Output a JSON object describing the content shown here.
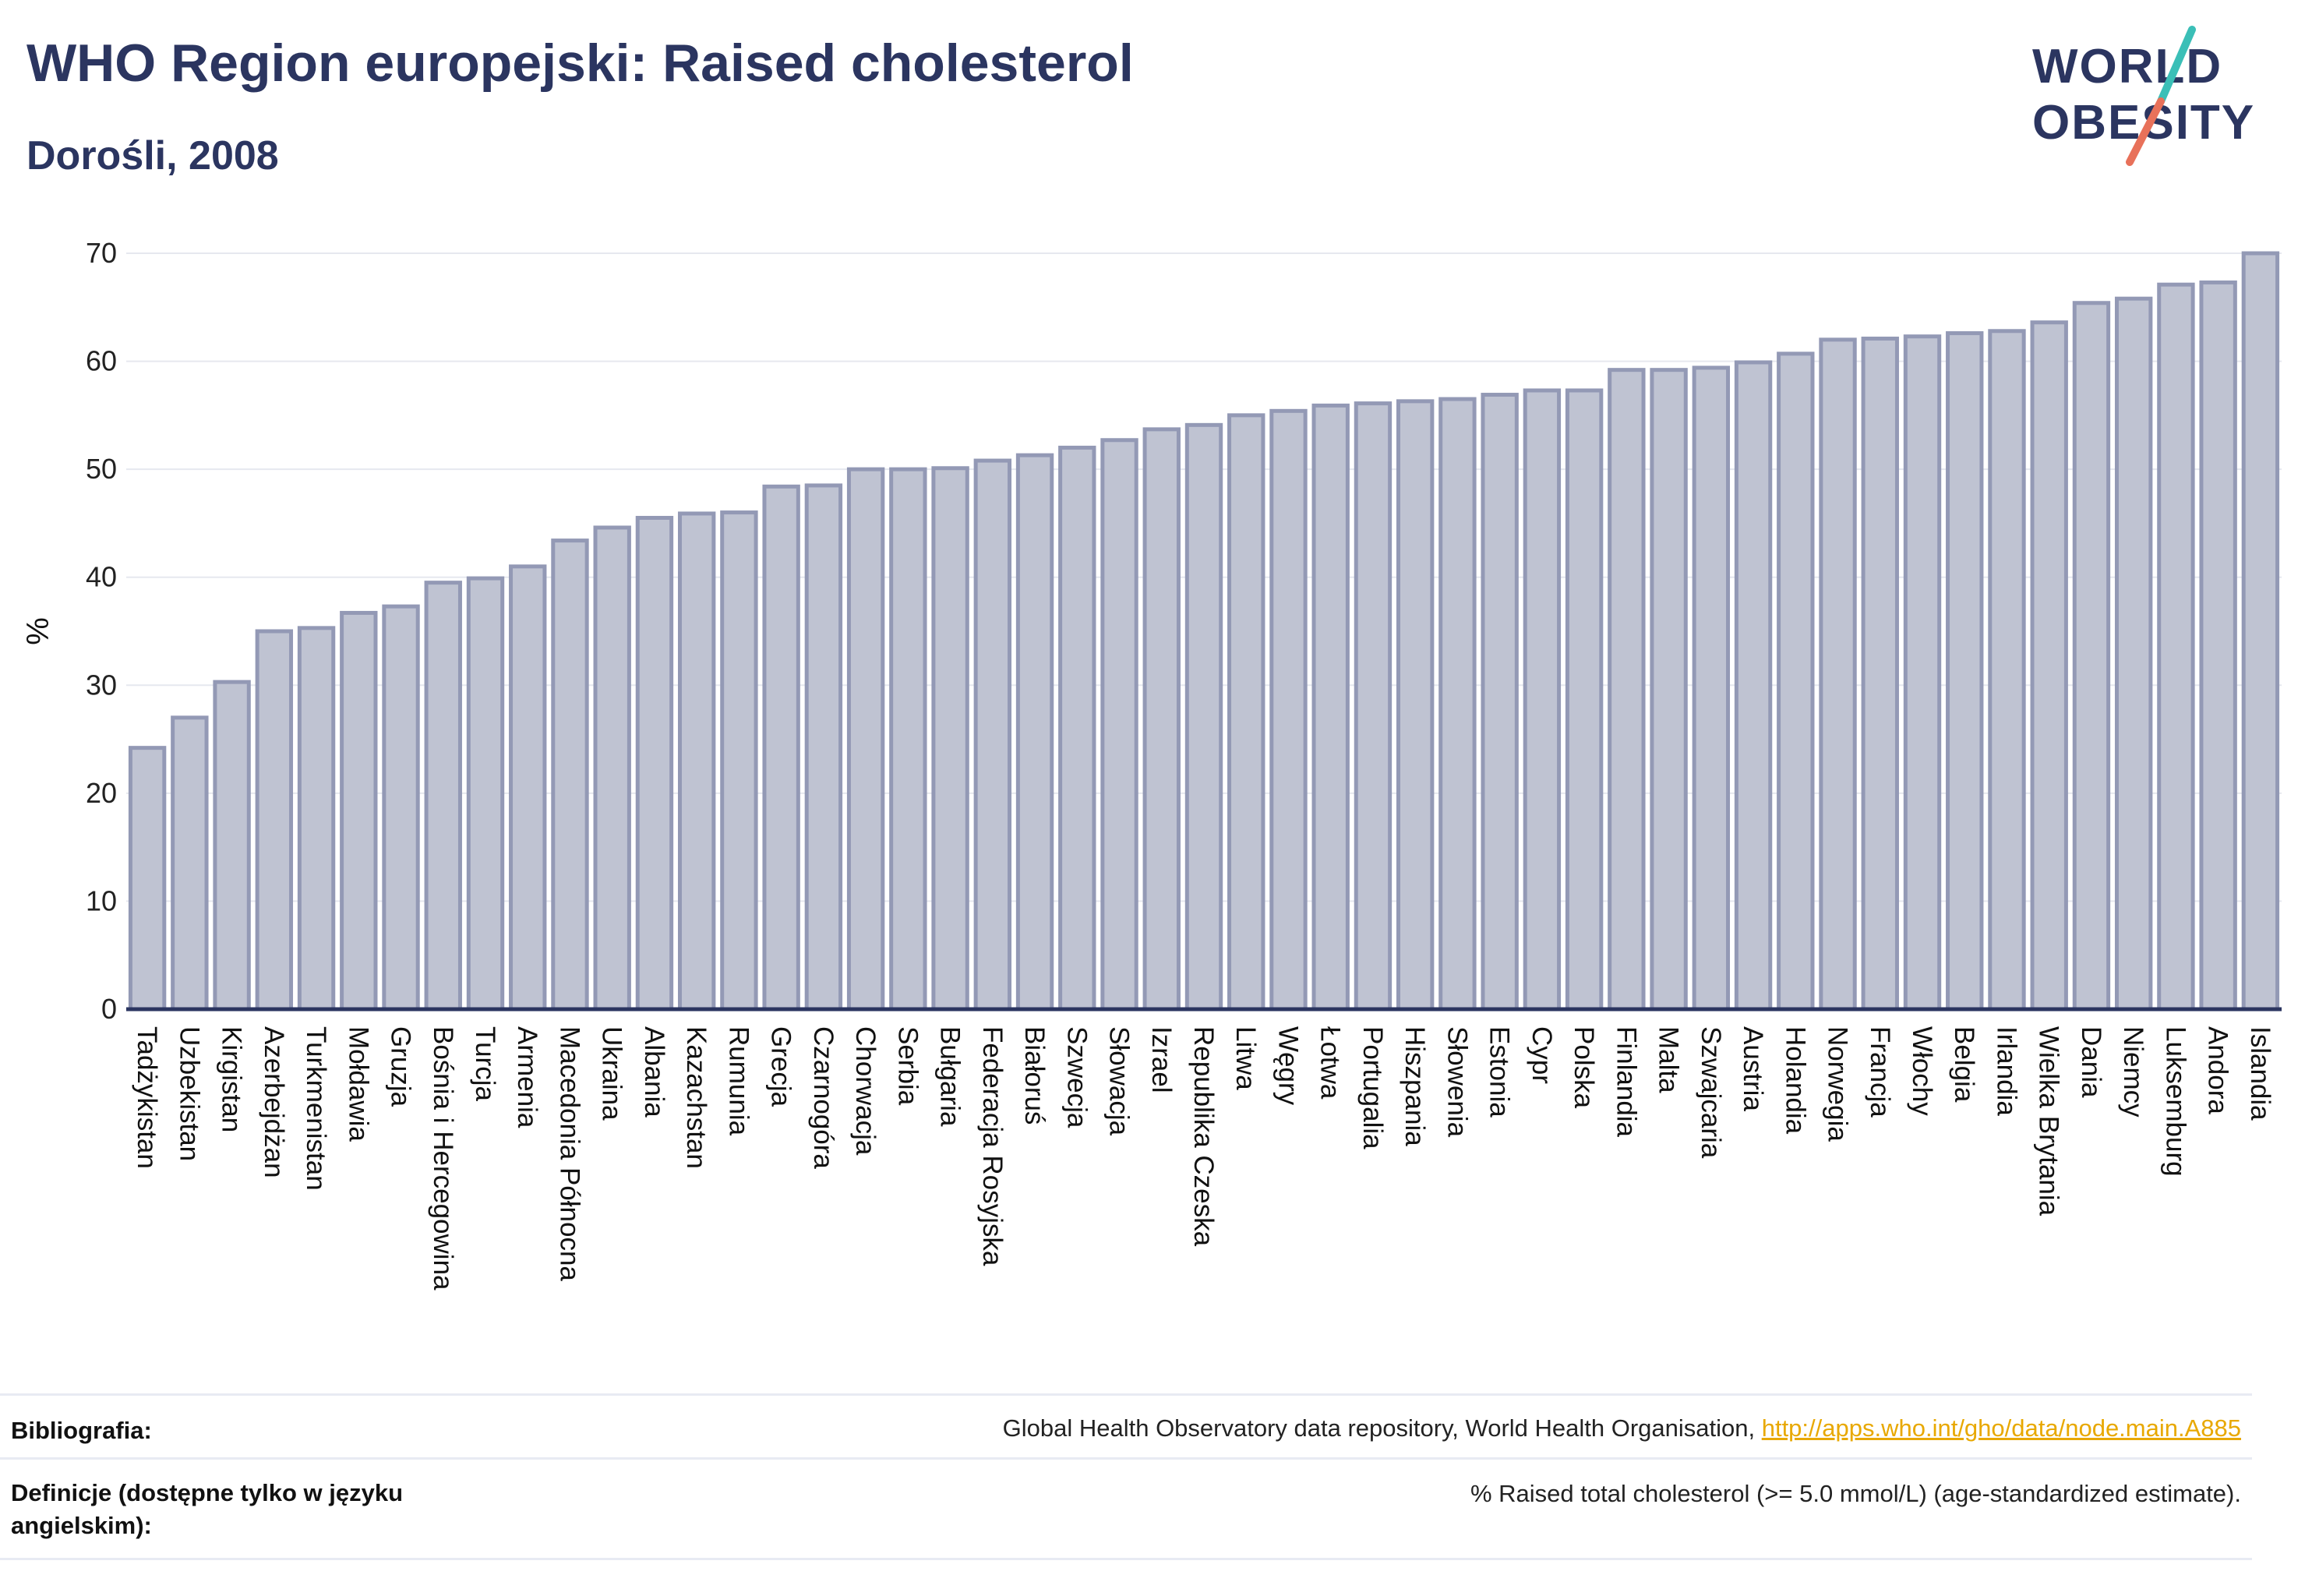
{
  "header": {
    "title": "WHO Region europejski: Raised cholesterol",
    "subtitle": "Dorośli, 2008"
  },
  "logo": {
    "line1": "WORLD",
    "line2": "OBESITY",
    "accent_colors": [
      "#3bbfb7",
      "#e8715a"
    ]
  },
  "colors": {
    "bar_fill": "#bfc3d2",
    "bar_stroke": "#9399b5",
    "axis": "#2b3560",
    "grid": "#e6e8ef"
  },
  "chart_data": {
    "type": "bar",
    "title": "WHO Region europejski: Raised cholesterol",
    "subtitle": "Dorośli, 2008",
    "xlabel": "",
    "ylabel": "%",
    "ylim": [
      0,
      70
    ],
    "yticks": [
      0,
      10,
      20,
      30,
      40,
      50,
      60,
      70
    ],
    "grid": true,
    "categories": [
      "Tadżykistan",
      "Uzbekistan",
      "Kirgistan",
      "Azerbejdżan",
      "Turkmenistan",
      "Mołdawia",
      "Gruzja",
      "Bośnia i Hercegowina",
      "Turcja",
      "Armenia",
      "Macedonia Północna",
      "Ukraina",
      "Albania",
      "Kazachstan",
      "Rumunia",
      "Grecja",
      "Czarnogóra",
      "Chorwacja",
      "Serbia",
      "Bułgaria",
      "Federacja Rosyjska",
      "Białoruś",
      "Szwecja",
      "Słowacja",
      "Izrael",
      "Republika Czeska",
      "Litwa",
      "Węgry",
      "Łotwa",
      "Portugalia",
      "Hiszpania",
      "Słowenia",
      "Estonia",
      "Cypr",
      "Polska",
      "Finlandia",
      "Malta",
      "Szwajcaria",
      "Austria",
      "Holandia",
      "Norwegia",
      "Francja",
      "Włochy",
      "Belgia",
      "Irlandia",
      "Wielka Brytania",
      "Dania",
      "Niemcy",
      "Luksemburg",
      "Andora",
      "Islandia"
    ],
    "values": [
      24.2,
      27.0,
      30.3,
      35.0,
      35.3,
      36.7,
      37.3,
      39.5,
      39.9,
      41.0,
      43.4,
      44.6,
      45.5,
      45.9,
      46.0,
      48.4,
      48.5,
      50.0,
      50.0,
      50.1,
      50.8,
      51.3,
      52.0,
      52.7,
      53.7,
      54.1,
      55.0,
      55.4,
      55.9,
      56.1,
      56.3,
      56.5,
      56.9,
      57.3,
      57.3,
      59.2,
      59.2,
      59.4,
      59.9,
      60.7,
      62.0,
      62.1,
      62.3,
      62.6,
      62.8,
      63.6,
      65.4,
      65.8,
      67.1,
      67.3,
      70.0
    ]
  },
  "footer": {
    "bibliography_label": "Bibliografia:",
    "bibliography_text": "Global Health Observatory data repository, World Health Organisation, ",
    "bibliography_link": "http://apps.who.int/gho/data/node.main.A885",
    "definitions_label": "Definicje (dostępne tylko w języku angielskim):",
    "definitions_text": "% Raised total cholesterol (>= 5.0 mmol/L) (age-standardized estimate)."
  }
}
